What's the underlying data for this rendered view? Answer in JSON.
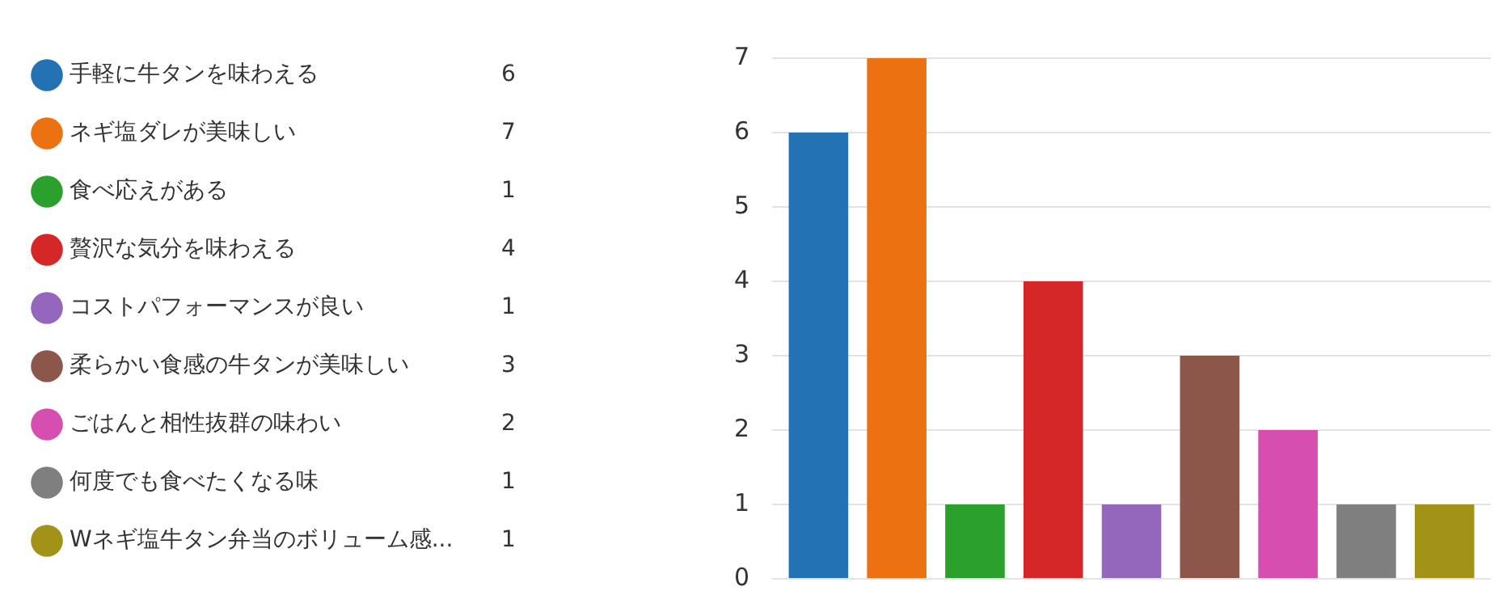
{
  "chart_data": {
    "type": "bar",
    "categories": [
      null
    ],
    "series": [
      {
        "name": "手軽に牛タンを味わえる",
        "color": "#2272b4",
        "values": [
          6
        ]
      },
      {
        "name": "ネギ塩ダレが美味しい",
        "color": "#ec7211",
        "values": [
          7
        ]
      },
      {
        "name": "食べ応えがある",
        "color": "#2ca02c",
        "values": [
          1
        ]
      },
      {
        "name": "贅沢な気分を味わえる",
        "color": "#d62728",
        "values": [
          4
        ]
      },
      {
        "name": "コストパフォーマンスが良い",
        "color": "#9467bd",
        "values": [
          1
        ]
      },
      {
        "name": "柔らかい食感の牛タンが美味しい",
        "color": "#8c564b",
        "values": [
          3
        ]
      },
      {
        "name": "ごはんと相性抜群の味わい",
        "color": "#d64fb0",
        "values": [
          2
        ]
      },
      {
        "name": "何度でも食べたくなる味",
        "color": "#7f7f7f",
        "values": [
          1
        ]
      },
      {
        "name": "Wネギ塩牛タン弁当のボリューム感...",
        "color": "#a39218",
        "values": [
          1
        ]
      }
    ],
    "ylim": [
      0,
      7
    ],
    "yticks": [
      0,
      1,
      2,
      3,
      4,
      5,
      6,
      7
    ],
    "grid": "y",
    "legend": "left",
    "tick_labels": "y",
    "annotations": [
      "6",
      "7",
      "1",
      "4",
      "1",
      "3",
      "2",
      "1",
      "1"
    ]
  }
}
